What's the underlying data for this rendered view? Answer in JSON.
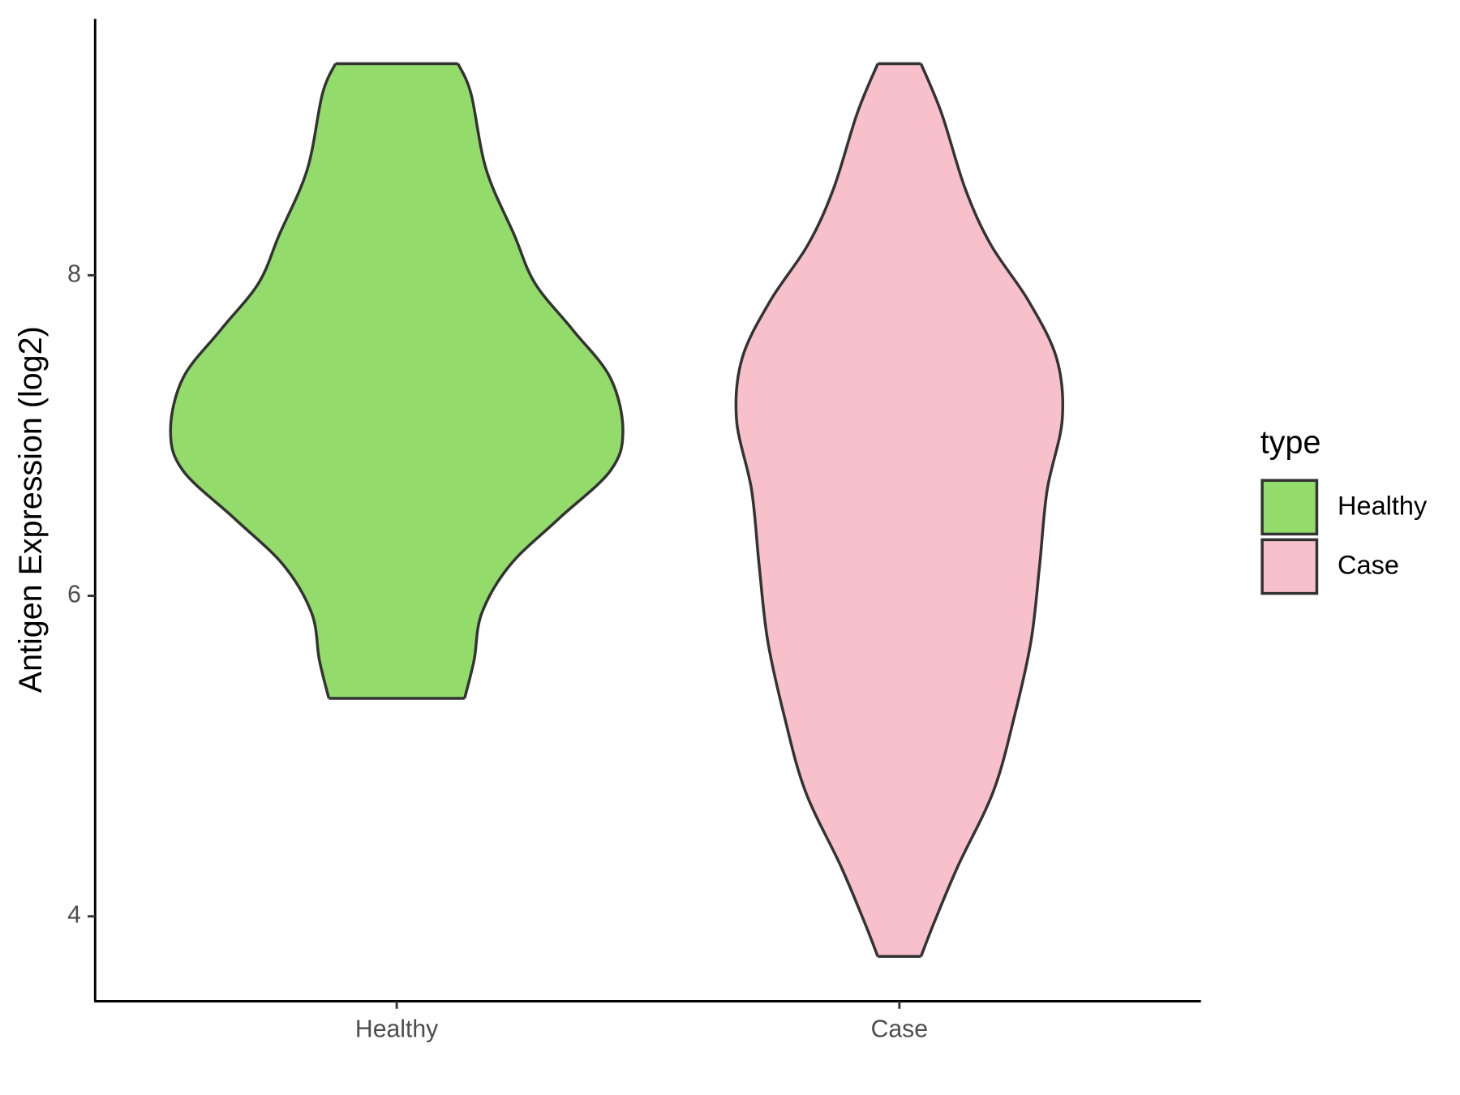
{
  "chart_data": {
    "type": "violin",
    "y_label": "Antigen Expression (log2)",
    "categories": [
      "Healthy",
      "Case"
    ],
    "series": [
      {
        "name": "Healthy",
        "color": "#93dc6b",
        "y": [
          9.32,
          9.13,
          8.66,
          8.25,
          7.95,
          7.66,
          7.36,
          7.03,
          6.78,
          6.48,
          6.19,
          5.89,
          5.6,
          5.36
        ],
        "density": [
          0.122,
          0.148,
          0.178,
          0.234,
          0.275,
          0.35,
          0.425,
          0.45,
          0.425,
          0.322,
          0.225,
          0.169,
          0.154,
          0.135
        ]
      },
      {
        "name": "Case",
        "color": "#f7c0cb",
        "y": [
          9.32,
          9.01,
          8.54,
          8.19,
          7.84,
          7.48,
          7.1,
          6.66,
          6.19,
          5.72,
          5.25,
          4.78,
          4.31,
          3.96,
          3.75
        ],
        "density": [
          0.043,
          0.084,
          0.131,
          0.182,
          0.257,
          0.313,
          0.324,
          0.294,
          0.279,
          0.262,
          0.229,
          0.187,
          0.116,
          0.069,
          0.043
        ]
      }
    ],
    "ylim": [
      3.47,
      9.6
    ],
    "yticks": [
      4,
      6,
      8
    ],
    "legend_title": "type",
    "legend": "right"
  }
}
